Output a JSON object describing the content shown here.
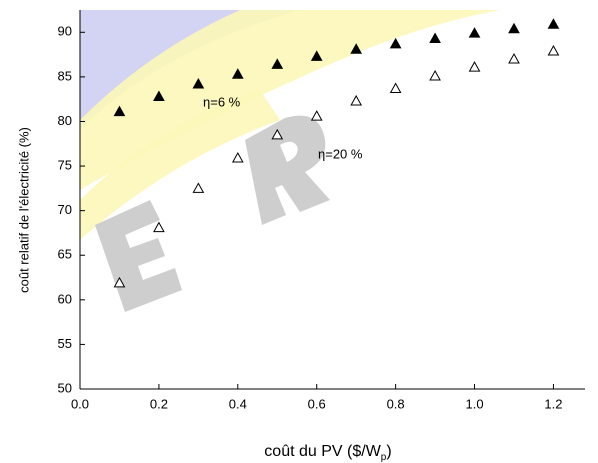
{
  "chart_data": {
    "type": "scatter",
    "x_label": [
      "coût du PV ($/W",
      "p",
      ")"
    ],
    "y_label": "coût relatif de l'électricité (%)",
    "xlim": [
      0,
      1.28
    ],
    "ylim": [
      50,
      92.5
    ],
    "xticks": [
      {
        "value": 0,
        "label": "0.0"
      },
      0.2,
      0.4,
      0.6,
      0.8,
      {
        "value": 1,
        "label": "1.0"
      },
      1.2
    ],
    "yticks": [
      50,
      55,
      60,
      65,
      70,
      75,
      80,
      85,
      90
    ],
    "series": [
      {
        "name": "η=6 %",
        "color": "#000000",
        "marker": "filled-triangle",
        "x": [
          0.1,
          0.2,
          0.3,
          0.4,
          0.5,
          0.6,
          0.7,
          0.8,
          0.9,
          1.0,
          1.1,
          1.2
        ],
        "values": [
          81.1,
          82.8,
          84.2,
          85.3,
          86.4,
          87.3,
          88.1,
          88.7,
          89.3,
          89.9,
          90.4,
          90.9
        ]
      },
      {
        "name": "η=20 %",
        "color": "#000000",
        "marker": "open-triangle",
        "x": [
          0.1,
          0.2,
          0.3,
          0.4,
          0.5,
          0.6,
          0.7,
          0.8,
          0.9,
          1.0,
          1.1,
          1.2
        ],
        "values": [
          61.9,
          68.1,
          72.5,
          75.9,
          78.5,
          80.6,
          82.3,
          83.7,
          85.1,
          86.1,
          87.0,
          87.9
        ]
      }
    ]
  }
}
